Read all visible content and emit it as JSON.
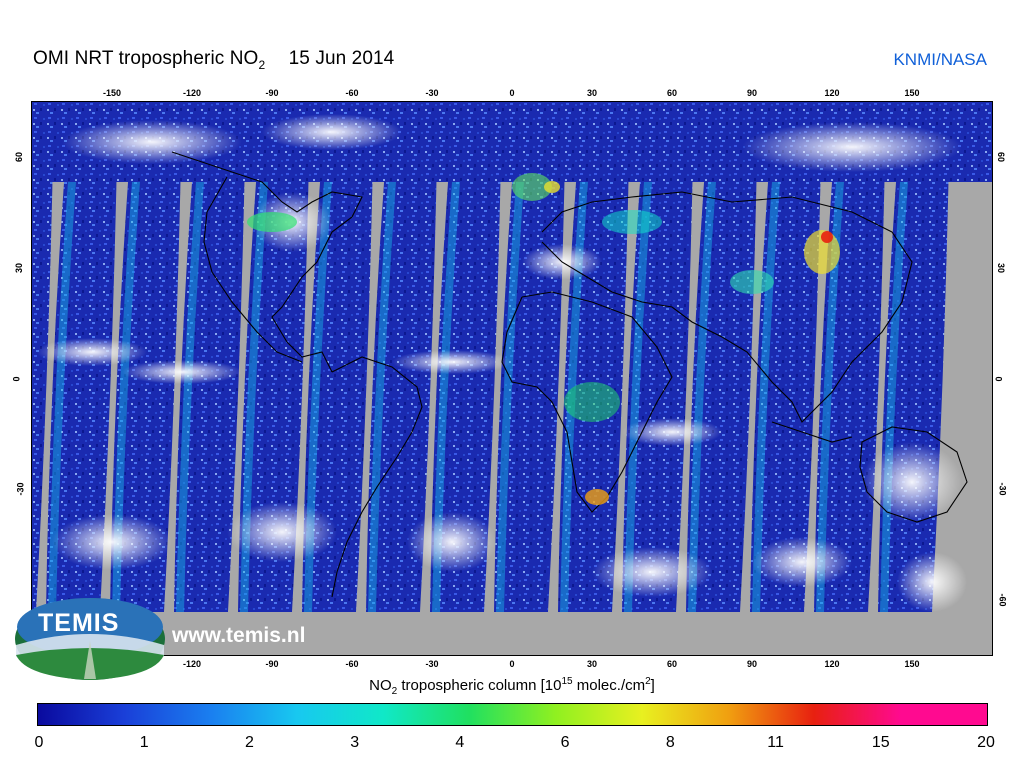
{
  "header": {
    "title_main": "OMI NRT tropospheric NO",
    "title_sub": "2",
    "date": "15 Jun 2014",
    "credit": "KNMI/NASA"
  },
  "map": {
    "type": "satellite-swath-map",
    "projection": "equirectangular",
    "lon_ticks_top": [
      "-150",
      "-120",
      "-90",
      "-60",
      "-30",
      "0",
      "30",
      "60",
      "90",
      "120",
      "150"
    ],
    "lon_ticks_bottom": [
      "-120",
      "-90",
      "-60",
      "-30",
      "0",
      "30",
      "60",
      "90",
      "120",
      "150"
    ],
    "lat_ticks": [
      "60",
      "30",
      "0",
      "-30",
      "-60"
    ],
    "lat_ticks_left": [
      "60",
      "30",
      "0",
      "-30"
    ],
    "lat_ticks_right": [
      "60",
      "30",
      "0",
      "-30",
      "-60"
    ]
  },
  "colorbar": {
    "label_prefix": "NO",
    "label_sub": "2",
    "label_middle": " tropospheric column [10",
    "label_sup": "15",
    "label_tail": " molec./cm",
    "label_sup2": "2",
    "label_end": "]",
    "labels": [
      "0",
      "1",
      "2",
      "3",
      "4",
      "6",
      "8",
      "11",
      "15",
      "20"
    ],
    "colors": [
      "#0a0a9e",
      "#1a3fd8",
      "#1a7ff0",
      "#18c8f0",
      "#10e8c8",
      "#20e060",
      "#90f020",
      "#e8f020",
      "#f0a010",
      "#e82010",
      "#ff0a90"
    ]
  },
  "logo": {
    "name": "TEMIS",
    "url": "www.temis.nl"
  }
}
